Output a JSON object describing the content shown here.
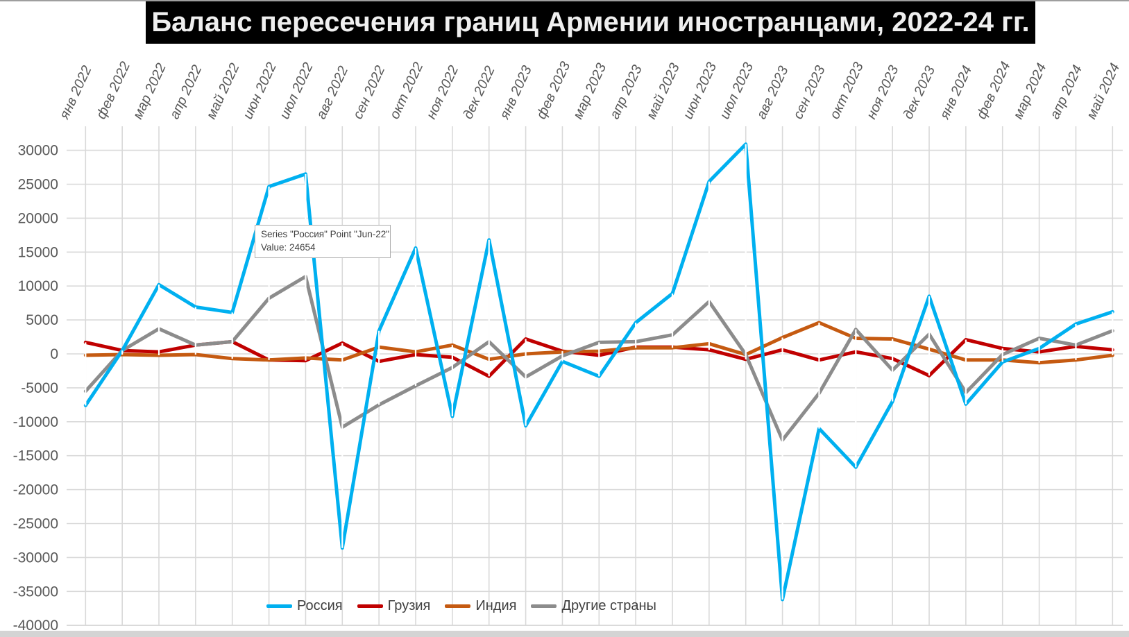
{
  "title": "Баланс пересечения границ Армении иностранцами, 2022-24 гг.",
  "tooltip": {
    "line1": "Series \"Россия\" Point \"Jun-22\"",
    "line2": "Value: 24654"
  },
  "colors": {
    "russia": "#00B0F0",
    "georgia": "#C00000",
    "india": "#C55A11",
    "other": "#8C8C8C",
    "gridline": "#D9D9D9",
    "highlow_line": "#FFFFFF",
    "axis_text": "#595959",
    "title_bg": "#000000",
    "title_text": "#EFEFEF"
  },
  "y_axis_tick_labels": [
    "30000",
    "25000",
    "20000",
    "15000",
    "10000",
    "5000",
    "0",
    "-5000",
    "-10000",
    "-15000",
    "-20000",
    "-25000",
    "-30000",
    "-35000",
    "-40000"
  ],
  "chart_data": {
    "type": "line",
    "title": "Баланс пересечения границ Армении иностранцами, 2022-24 гг.",
    "xlabel": "",
    "ylabel": "",
    "ylim": [
      -40000,
      30000
    ],
    "ytick_step": 5000,
    "grid": true,
    "high_low_lines": true,
    "category_labels_position": "top",
    "legend_position": "bottom",
    "categories": [
      "янв 2022",
      "фев 2022",
      "мар 2022",
      "апр 2022",
      "май 2022",
      "июн 2022",
      "июл 2022",
      "авг 2022",
      "сен 2022",
      "окт 2022",
      "ноя 2022",
      "дек 2022",
      "янв 2023",
      "фев 2023",
      "мар 2023",
      "апр 2023",
      "май 2023",
      "июн 2023",
      "июл 2023",
      "авг 2023",
      "сен 2023",
      "окт 2023",
      "ноя 2023",
      "дек 2023",
      "янв 2024",
      "фев 2024",
      "мар 2024",
      "апр 2024",
      "май 2024"
    ],
    "series": [
      {
        "name": "Россия",
        "color": "#00B0F0",
        "values": [
          -7600,
          500,
          10200,
          6900,
          6100,
          24654,
          26500,
          -28600,
          3400,
          15600,
          -9200,
          16800,
          -10600,
          -1100,
          -3300,
          4600,
          8900,
          25400,
          30900,
          -36200,
          -11000,
          -16700,
          -7000,
          8500,
          -7400,
          -1200,
          800,
          4400,
          6200
        ]
      },
      {
        "name": "Грузия",
        "color": "#C00000",
        "values": [
          1700,
          500,
          300,
          1300,
          1800,
          -900,
          -1000,
          1600,
          -1100,
          -100,
          -500,
          -3300,
          2200,
          400,
          -200,
          1000,
          1000,
          600,
          -800,
          600,
          -900,
          300,
          -700,
          -3200,
          2100,
          800,
          300,
          1100,
          600
        ]
      },
      {
        "name": "Индия",
        "color": "#C55A11",
        "values": [
          -200,
          -100,
          -200,
          -100,
          -700,
          -900,
          -600,
          -900,
          1000,
          300,
          1300,
          -800,
          0,
          300,
          400,
          900,
          900,
          1500,
          -100,
          2400,
          4600,
          2300,
          2200,
          700,
          -900,
          -900,
          -1300,
          -900,
          -200
        ]
      },
      {
        "name": "Другие страны",
        "color": "#8C8C8C",
        "values": [
          -5500,
          500,
          3700,
          1300,
          1800,
          8200,
          11400,
          -10800,
          -7500,
          -4700,
          -2000,
          1800,
          -3400,
          -300,
          1700,
          1800,
          2800,
          7700,
          -100,
          -12700,
          -5800,
          3600,
          -2400,
          2900,
          -5700,
          -100,
          2300,
          1300,
          3400
        ]
      }
    ],
    "annotations": [
      "Series \"Россия\" Point \"Jun-22\" Value: 24654"
    ]
  }
}
